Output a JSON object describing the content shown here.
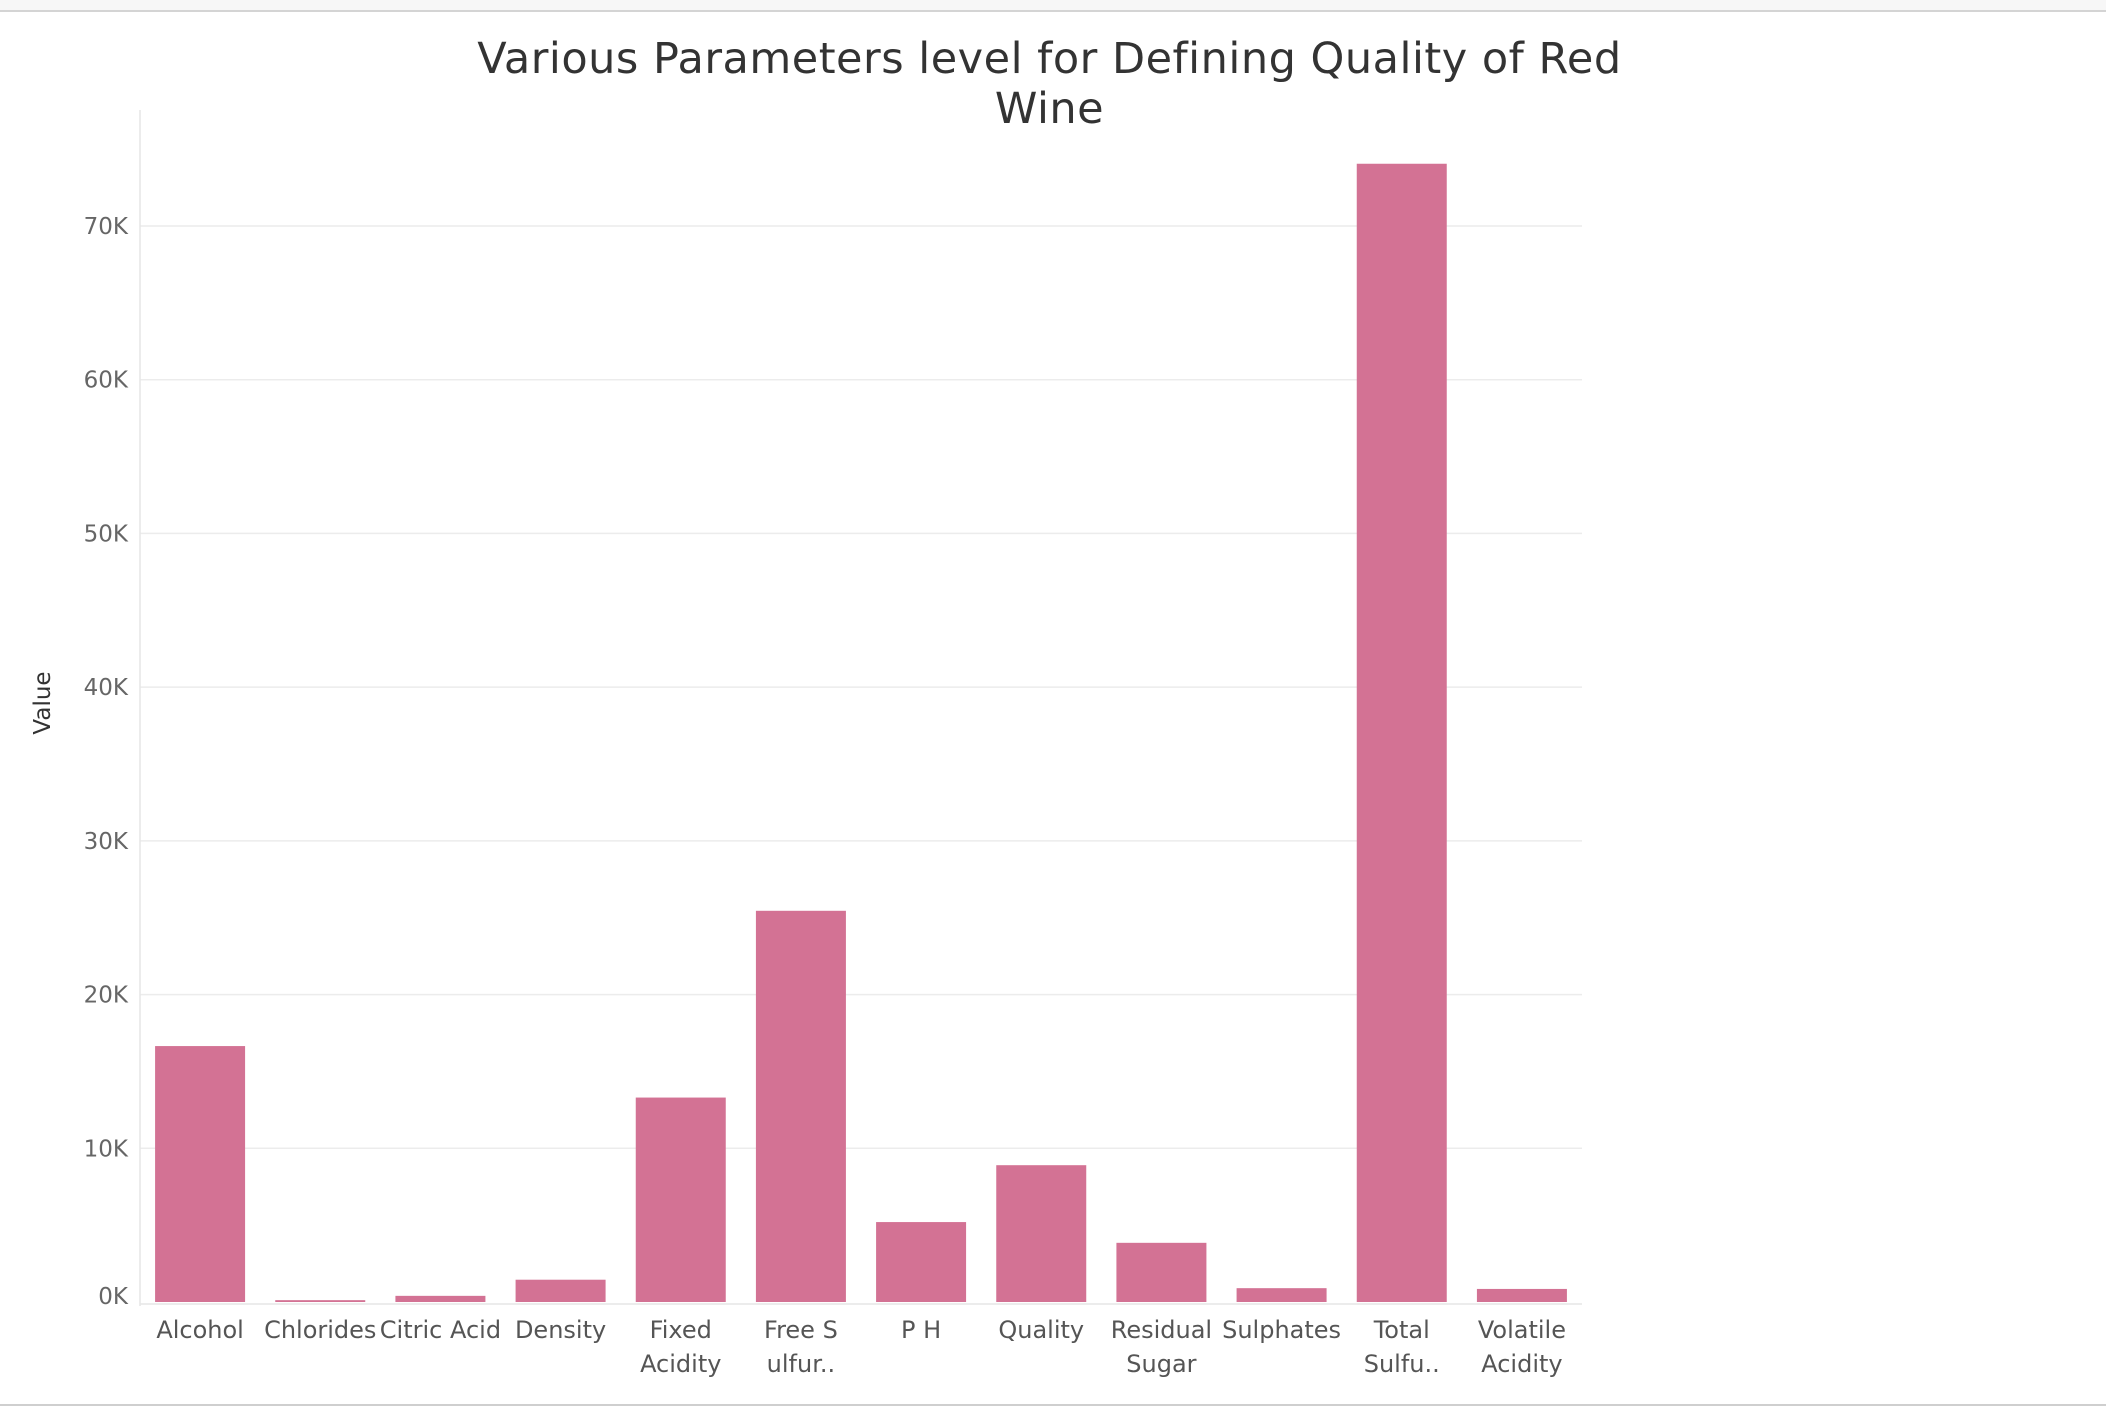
{
  "chart_data": {
    "type": "bar",
    "title": "Various Parameters level for Defining Quality of Red Wine",
    "xlabel": "",
    "ylabel": "Value",
    "categories": [
      [
        "Alcohol"
      ],
      [
        "Chlorides"
      ],
      [
        "Citric Acid"
      ],
      [
        "Density"
      ],
      [
        "Fixed",
        "Acidity"
      ],
      [
        "Free S",
        "ulfur.."
      ],
      [
        "P H"
      ],
      [
        "Quality"
      ],
      [
        "Residual",
        "Sugar"
      ],
      [
        "Sulphates"
      ],
      [
        "Total",
        "Sulfu.."
      ],
      [
        "Volatile",
        "Acidity"
      ]
    ],
    "values": [
      16650,
      120,
      400,
      1450,
      13300,
      25450,
      5200,
      8900,
      3850,
      900,
      74050,
      850
    ],
    "ylim": [
      0,
      78000
    ],
    "yticks": [
      0,
      10000,
      20000,
      30000,
      40000,
      50000,
      60000,
      70000
    ],
    "ytick_labels": [
      "0K",
      "10K",
      "20K",
      "30K",
      "40K",
      "50K",
      "60K",
      "70K"
    ],
    "bar_color": "#d37294",
    "grid": true,
    "legend": "none"
  }
}
